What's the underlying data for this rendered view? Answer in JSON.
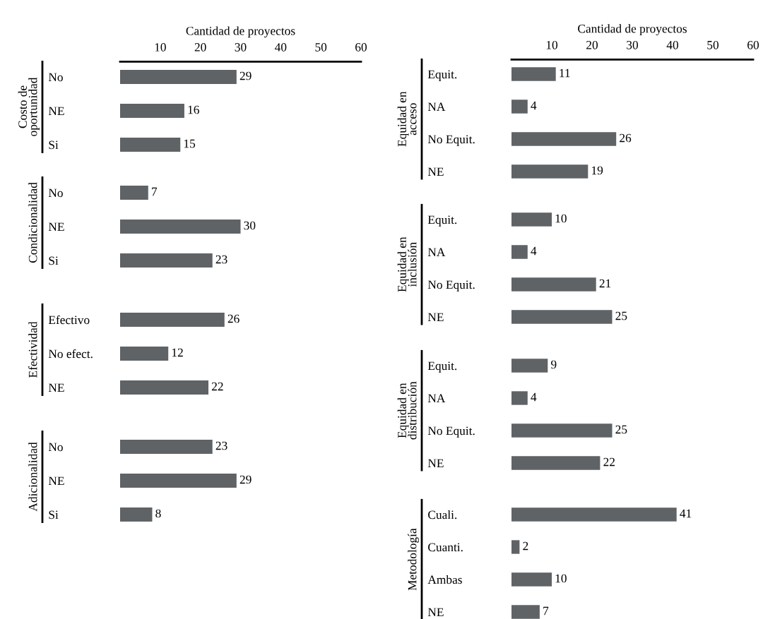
{
  "chart_data": [
    {
      "type": "bar",
      "orientation": "horizontal",
      "xlabel": "Cantidad de proyectos",
      "ylabel": "Costo de\noportunidad",
      "categories": [
        "No",
        "NE",
        "Si"
      ],
      "values": [
        29,
        16,
        15
      ],
      "color": "#5f6366",
      "xlim": [
        0,
        60
      ],
      "xticks": [
        10,
        20,
        30,
        40,
        50,
        60
      ],
      "data_labels": true
    },
    {
      "type": "bar",
      "orientation": "horizontal",
      "ylabel": "Condicionalidad",
      "categories": [
        "No",
        "NE",
        "Si"
      ],
      "values": [
        7,
        30,
        23
      ],
      "color": "#5f6366",
      "data_labels": true,
      "tick_labels": "y"
    },
    {
      "type": "bar",
      "orientation": "horizontal",
      "ylabel": "Efectividad",
      "categories": [
        "Efectivo",
        "No efect.",
        "NE"
      ],
      "values": [
        26,
        12,
        22
      ],
      "color": "#5f6366",
      "data_labels": true,
      "tick_labels": "y"
    },
    {
      "type": "bar",
      "orientation": "horizontal",
      "ylabel": "Adicionalidad",
      "categories": [
        "No",
        "NE",
        "Si"
      ],
      "values": [
        23,
        29,
        8
      ],
      "color": "#5f6366",
      "data_labels": true,
      "tick_labels": "y"
    },
    {
      "type": "bar",
      "orientation": "horizontal",
      "xlabel": "Cantidad de proyectos",
      "ylabel": "Equidad en\nacceso",
      "categories": [
        "Equit.",
        "NA",
        "No Equit.",
        "NE"
      ],
      "values": [
        11,
        4,
        26,
        19
      ],
      "color": "#5f6366",
      "xlim": [
        0,
        60
      ],
      "xticks": [
        10,
        20,
        30,
        40,
        50,
        60
      ],
      "data_labels": true
    },
    {
      "type": "bar",
      "orientation": "horizontal",
      "ylabel": "Equidad en\ninclusión",
      "categories": [
        "Equit.",
        "NA",
        "No Equit.",
        "NE"
      ],
      "values": [
        10,
        4,
        21,
        25
      ],
      "color": "#5f6366",
      "data_labels": true,
      "tick_labels": "y"
    },
    {
      "type": "bar",
      "orientation": "horizontal",
      "ylabel": "Equidad en\ndistribución",
      "categories": [
        "Equit.",
        "NA",
        "No Equit.",
        "NE"
      ],
      "values": [
        9,
        4,
        25,
        22
      ],
      "color": "#5f6366",
      "data_labels": true,
      "tick_labels": "y"
    },
    {
      "type": "bar",
      "orientation": "horizontal",
      "ylabel": "Metodología",
      "categories": [
        "Cuali.",
        "Cuanti.",
        "Ambas",
        "NE"
      ],
      "values": [
        41,
        2,
        10,
        7
      ],
      "color": "#5f6366",
      "data_labels": true,
      "tick_labels": "y"
    }
  ]
}
